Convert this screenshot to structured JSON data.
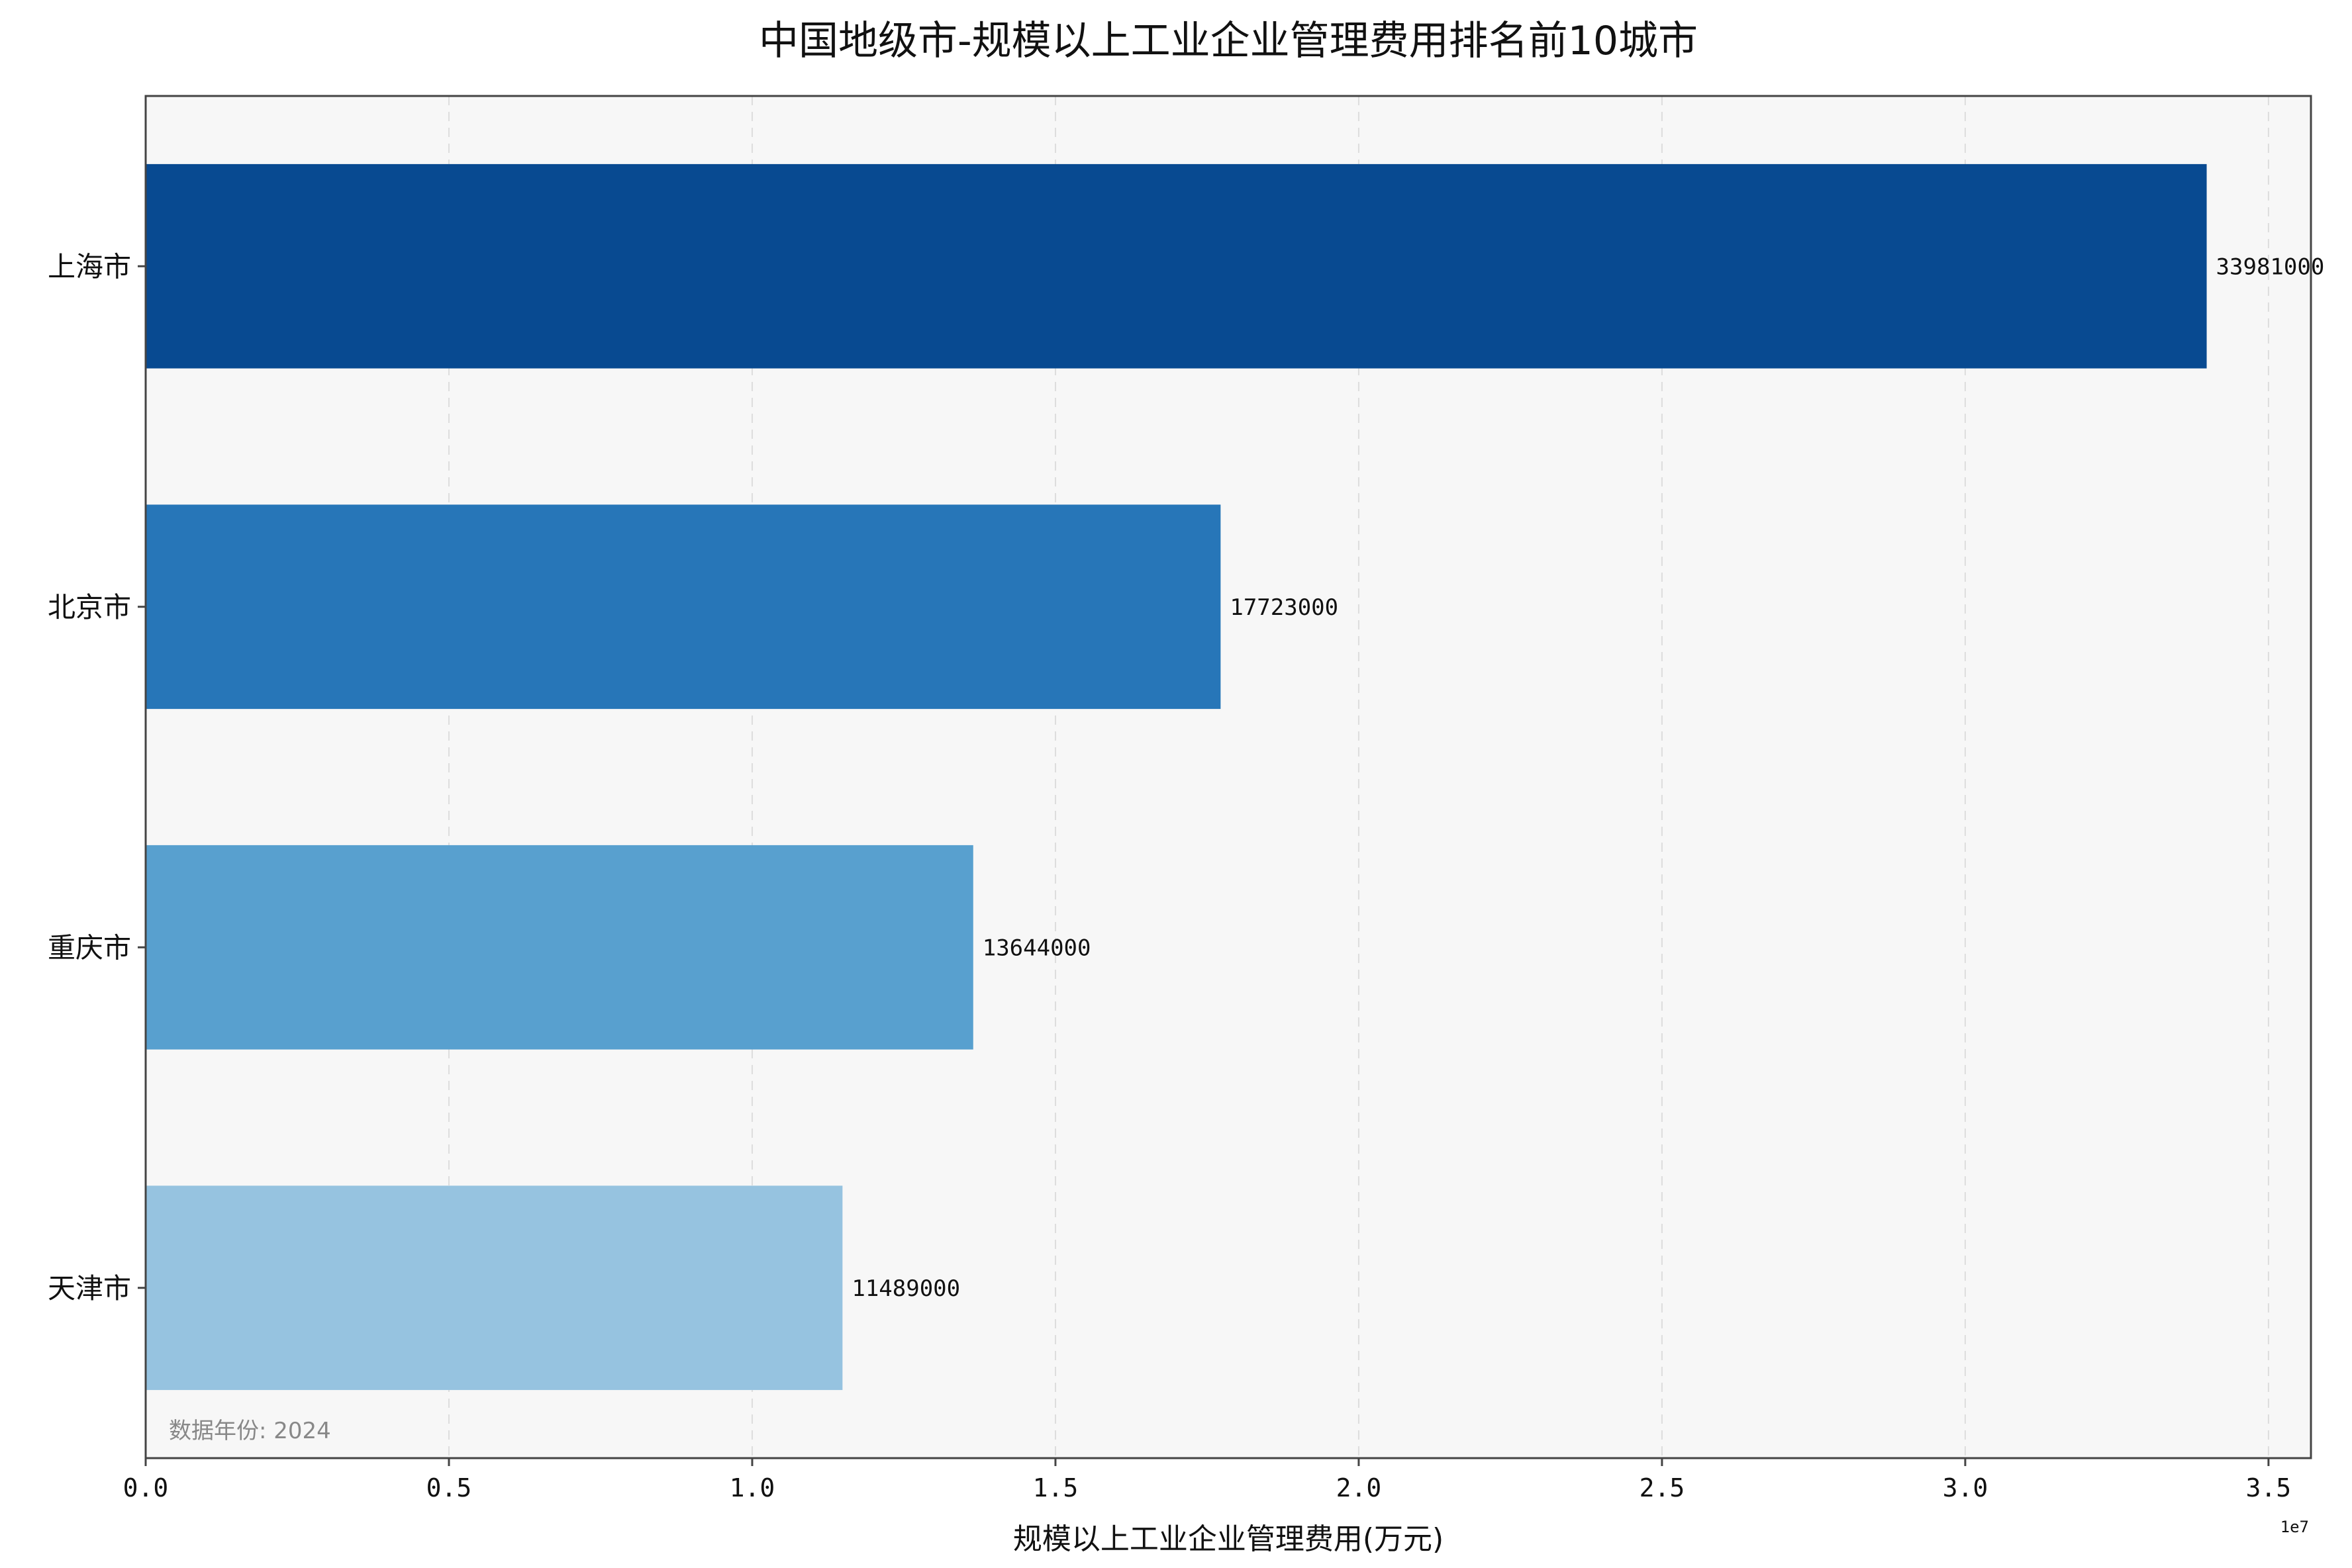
{
  "chart_data": {
    "type": "bar",
    "orientation": "horizontal",
    "title": "中国地级市-规模以上工业企业管理费用排名前10城市",
    "xlabel": "规模以上工业企业管理费用(万元)",
    "ylabel": "",
    "categories": [
      "上海市",
      "北京市",
      "重庆市",
      "天津市"
    ],
    "values": [
      33981000,
      17723000,
      13644000,
      11489000
    ],
    "value_labels": [
      "33981000",
      "17723000",
      "13644000",
      "11489000"
    ],
    "bar_colors": [
      "#084a91",
      "#2776b8",
      "#58a0cf",
      "#96c3e0"
    ],
    "xlim": [
      0,
      35700000
    ],
    "x_ticks": [
      0,
      5000000,
      10000000,
      15000000,
      20000000,
      25000000,
      30000000,
      35000000
    ],
    "x_tick_labels": [
      "0.0",
      "0.5",
      "1.0",
      "1.5",
      "2.0",
      "2.5",
      "3.0",
      "3.5"
    ],
    "x_offset_label": "1e7",
    "grid": "vertical-dashed",
    "note": "数据年份: 2024",
    "plot_background": "#f7f7f7",
    "grid_color": "#dddddd"
  }
}
